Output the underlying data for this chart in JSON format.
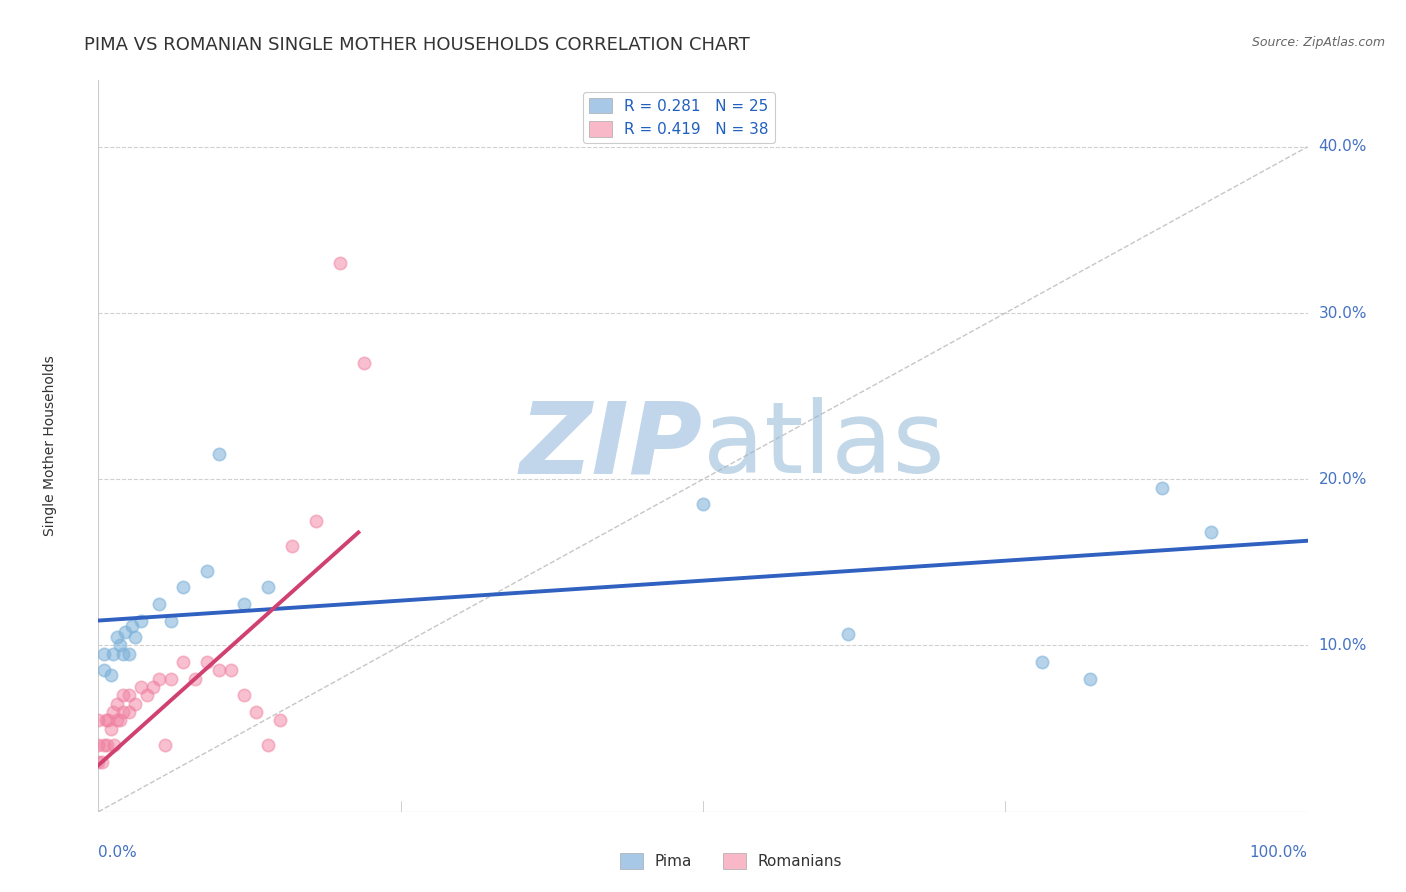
{
  "title": "PIMA VS ROMANIAN SINGLE MOTHER HOUSEHOLDS CORRELATION CHART",
  "source": "Source: ZipAtlas.com",
  "ylabel": "Single Mother Households",
  "xlim": [
    0,
    1.0
  ],
  "ylim": [
    0.0,
    0.44
  ],
  "yticks": [
    0.0,
    0.1,
    0.2,
    0.3,
    0.4
  ],
  "yticklabels": [
    "",
    "10.0%",
    "20.0%",
    "30.0%",
    "40.0%"
  ],
  "legend_entries": [
    {
      "label": "R = 0.281   N = 25",
      "color": "#a8c8e8"
    },
    {
      "label": "R = 0.419   N = 38",
      "color": "#f8b8c8"
    }
  ],
  "pima_x": [
    0.005,
    0.005,
    0.01,
    0.012,
    0.015,
    0.018,
    0.02,
    0.022,
    0.025,
    0.028,
    0.03,
    0.035,
    0.05,
    0.06,
    0.07,
    0.09,
    0.1,
    0.12,
    0.14,
    0.5,
    0.62,
    0.78,
    0.82,
    0.88,
    0.92
  ],
  "pima_y": [
    0.085,
    0.095,
    0.082,
    0.095,
    0.105,
    0.1,
    0.095,
    0.108,
    0.095,
    0.112,
    0.105,
    0.115,
    0.125,
    0.115,
    0.135,
    0.145,
    0.215,
    0.125,
    0.135,
    0.185,
    0.107,
    0.09,
    0.08,
    0.195,
    0.168
  ],
  "pima_color": "#7ab0d8",
  "romanians_x": [
    0.0,
    0.0,
    0.0,
    0.003,
    0.005,
    0.006,
    0.007,
    0.008,
    0.01,
    0.012,
    0.013,
    0.015,
    0.015,
    0.018,
    0.02,
    0.02,
    0.025,
    0.025,
    0.03,
    0.035,
    0.04,
    0.045,
    0.05,
    0.055,
    0.06,
    0.07,
    0.08,
    0.09,
    0.1,
    0.11,
    0.12,
    0.13,
    0.14,
    0.15,
    0.16,
    0.18,
    0.2,
    0.22
  ],
  "romanians_y": [
    0.03,
    0.04,
    0.055,
    0.03,
    0.04,
    0.055,
    0.04,
    0.055,
    0.05,
    0.06,
    0.04,
    0.055,
    0.065,
    0.055,
    0.06,
    0.07,
    0.06,
    0.07,
    0.065,
    0.075,
    0.07,
    0.075,
    0.08,
    0.04,
    0.08,
    0.09,
    0.08,
    0.09,
    0.085,
    0.085,
    0.07,
    0.06,
    0.04,
    0.055,
    0.16,
    0.175,
    0.33,
    0.27
  ],
  "romanians_color": "#f080a0",
  "blue_line_x": [
    0.0,
    1.0
  ],
  "blue_line_y": [
    0.115,
    0.163
  ],
  "pink_line_x": [
    0.0,
    0.215
  ],
  "pink_line_y": [
    0.028,
    0.168
  ],
  "diag_line_x": [
    0.0,
    1.0
  ],
  "diag_line_y": [
    0.0,
    0.4
  ],
  "watermark_zip": "ZIP",
  "watermark_atlas": "atlas",
  "background_color": "#ffffff",
  "grid_color": "#d0d0d0",
  "title_color": "#333333",
  "axis_label_color": "#4472c4",
  "tick_color": "#4472c4",
  "title_fontsize": 13,
  "axis_label_fontsize": 10,
  "tick_fontsize": 11,
  "legend_fontsize": 11
}
